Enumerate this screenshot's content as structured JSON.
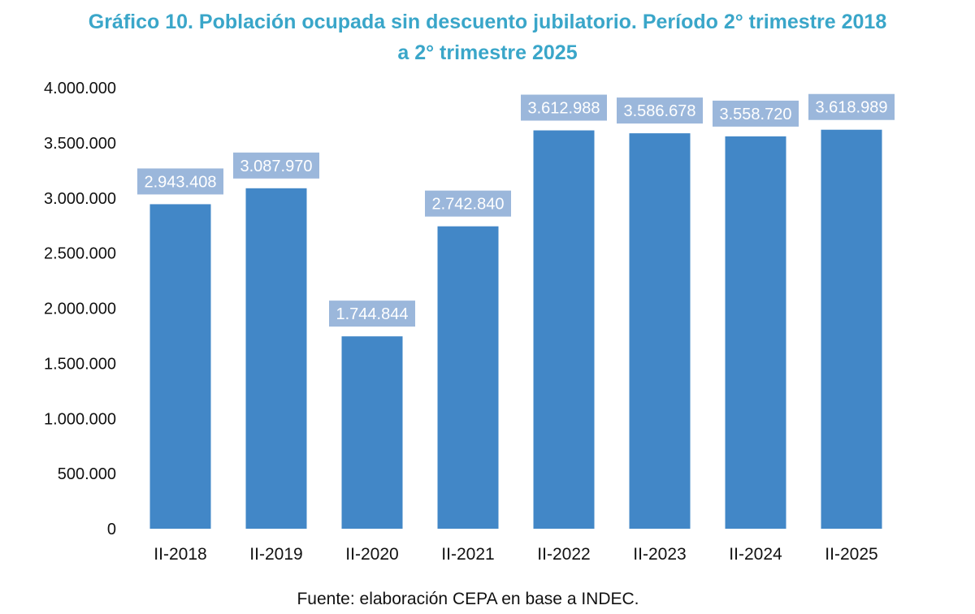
{
  "colors": {
    "title": "#3aa6c9",
    "bar": "#4287c7",
    "label_bg": "#9bb7db",
    "label_text": "#ffffff",
    "axis_text": "#111111"
  },
  "header": {
    "title_line1": "Gráfico 10. Población ocupada sin descuento jubilatorio. Período 2° trimestre 2018",
    "title_line2": "a 2° trimestre 2025"
  },
  "footer": {
    "source": "Fuente: elaboración CEPA en base a INDEC."
  },
  "chart_data": {
    "type": "bar",
    "title": "Gráfico 10. Población ocupada sin descuento jubilatorio. Período 2° trimestre 2018 a 2° trimestre 2025",
    "xlabel": "",
    "ylabel": "",
    "categories": [
      "II-2018",
      "II-2019",
      "II-2020",
      "II-2021",
      "II-2022",
      "II-2023",
      "II-2024",
      "II-2025"
    ],
    "values": [
      2943408,
      3087970,
      1744844,
      2742840,
      3612988,
      3586678,
      3558720,
      3618989
    ],
    "value_labels": [
      "2.943.408",
      "3.087.970",
      "1.744.844",
      "2.742.840",
      "3.612.988",
      "3.586.678",
      "3.558.720",
      "3.618.989"
    ],
    "ylim": [
      0,
      4000000
    ],
    "yticks": [
      0,
      500000,
      1000000,
      1500000,
      2000000,
      2500000,
      3000000,
      3500000,
      4000000
    ],
    "ytick_labels": [
      "0",
      "500.000",
      "1.000.000",
      "1.500.000",
      "2.000.000",
      "2.500.000",
      "3.000.000",
      "3.500.000",
      "4.000.000"
    ],
    "grid": false,
    "legend": "none"
  }
}
